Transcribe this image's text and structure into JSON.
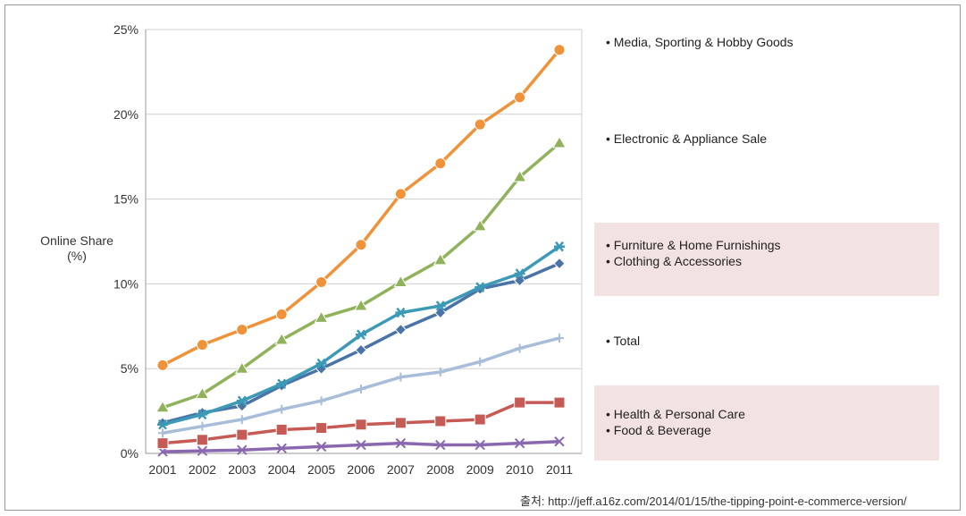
{
  "chart_data": {
    "type": "line",
    "ylabel": "Online Share\n(%)",
    "ylim": [
      0,
      25
    ],
    "yticks": [
      "0%",
      "5%",
      "10%",
      "15%",
      "20%",
      "25%"
    ],
    "ytick_values": [
      0,
      5,
      10,
      15,
      20,
      25
    ],
    "grid": true,
    "x": [
      "2001",
      "2002",
      "2003",
      "2004",
      "2005",
      "2006",
      "2007",
      "2008",
      "2009",
      "2010",
      "2011"
    ],
    "series": [
      {
        "name": "Media, Sporting & Hobby Goods",
        "color": "#f0923a",
        "marker": "circle",
        "values": [
          5.2,
          6.4,
          7.3,
          8.2,
          10.1,
          12.3,
          15.3,
          17.1,
          19.4,
          21.0,
          23.8
        ]
      },
      {
        "name": "Electronic & Appliance Sale",
        "color": "#8fb25a",
        "marker": "triangle",
        "values": [
          2.7,
          3.5,
          5.0,
          6.7,
          8.0,
          8.7,
          10.1,
          11.4,
          13.4,
          16.3,
          18.3
        ]
      },
      {
        "name": "Furniture & Home Furnishings",
        "color": "#3c9ab6",
        "marker": "asterisk",
        "values": [
          1.7,
          2.3,
          3.1,
          4.1,
          5.3,
          7.0,
          8.3,
          8.7,
          9.8,
          10.6,
          12.2
        ]
      },
      {
        "name": "Clothing & Accessories",
        "color": "#4a73a8",
        "marker": "diamond",
        "values": [
          1.8,
          2.4,
          2.8,
          4.0,
          5.0,
          6.1,
          7.3,
          8.3,
          9.7,
          10.2,
          11.2
        ]
      },
      {
        "name": "Total",
        "color": "#a7bdd9",
        "marker": "plus",
        "values": [
          1.2,
          1.6,
          2.0,
          2.6,
          3.1,
          3.8,
          4.5,
          4.8,
          5.4,
          6.2,
          6.8
        ]
      },
      {
        "name": "Health & Personal Care",
        "color": "#c65a55",
        "marker": "square",
        "values": [
          0.6,
          0.8,
          1.1,
          1.4,
          1.5,
          1.7,
          1.8,
          1.9,
          2.0,
          3.0,
          3.0
        ]
      },
      {
        "name": "Food & Beverage",
        "color": "#8a68b0",
        "marker": "x",
        "values": [
          0.1,
          0.15,
          0.2,
          0.3,
          0.4,
          0.5,
          0.6,
          0.5,
          0.5,
          0.6,
          0.7
        ]
      }
    ]
  },
  "legend": {
    "media": "• Media, Sporting & Hobby Goods",
    "electronic": "• Electronic & Appliance Sale",
    "furniture": "• Furniture & Home Furnishings",
    "clothing": "• Clothing & Accessories",
    "total": "• Total",
    "health": "• Health & Personal Care",
    "food": "• Food & Beverage",
    "highlight_color": "#f2e2e2"
  },
  "source": "출처: http://jeff.a16z.com/2014/01/15/the-tipping-point-e-commerce-version/"
}
